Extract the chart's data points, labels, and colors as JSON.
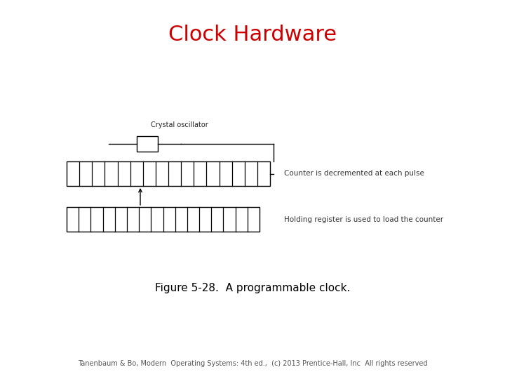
{
  "title": "Clock Hardware",
  "title_color": "#cc0000",
  "title_fontsize": 22,
  "figure_caption": "Figure 5-28.  A programmable clock.",
  "caption_fontsize": 11,
  "footer": "Tanenbaum & Bo, Modern  Operating Systems: 4th ed.,  (c) 2013 Prentice-Hall, Inc  All rights reserved",
  "footer_fontsize": 7,
  "bg_color": "#ffffff",
  "diagram": {
    "crystal_label": "Crystal oscillator",
    "crystal_label_fontsize": 7,
    "counter_label": "Counter is decremented at each pulse",
    "counter_label_fontsize": 7.5,
    "holding_label": "Holding register is used to load the counter",
    "holding_label_fontsize": 7.5,
    "register_num_cells": 16,
    "line_color": "#000000",
    "line_width": 1.0
  }
}
